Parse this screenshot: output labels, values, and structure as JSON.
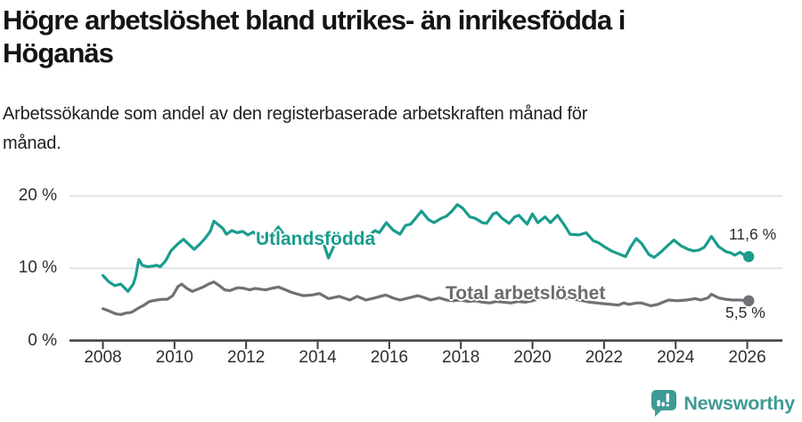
{
  "header": {
    "title_lines": [
      "Högre arbetslöshet bland utrikes- än inrikesfödda i",
      "Höganäs"
    ],
    "subtitle_lines": [
      "Arbetssökande som andel av den registerbaserade arbetskraften månad för",
      "månad."
    ]
  },
  "logo": {
    "text": "Newsworthy",
    "color": "#3f9a95"
  },
  "chart_data": {
    "type": "line",
    "title": "Högre arbetslöshet bland utrikes- än inrikesfödda i Höganäs",
    "subtitle": "Arbetssökande som andel av den registerbaserade arbetskraften månad för månad.",
    "grid": "horizontal",
    "legend_position": "inline-labels",
    "x_axis": {
      "range": [
        2008,
        2026.5
      ],
      "tick_years": [
        2008,
        2010,
        2012,
        2014,
        2016,
        2018,
        2020,
        2022,
        2024,
        2026
      ],
      "tick_labels": [
        "2008",
        "2010",
        "2012",
        "2014",
        "2016",
        "2018",
        "2020",
        "2022",
        "2024",
        "2026"
      ]
    },
    "y_axis": {
      "unit": "%",
      "range": [
        0,
        22
      ],
      "tick_values": [
        0,
        10,
        20
      ],
      "tick_labels": [
        "0 %",
        "10 %",
        "20 %"
      ]
    },
    "series": [
      {
        "name": "Utlandsfödda",
        "color": "#1a9c8e",
        "end_label": "11,6 %",
        "end_value": 11.6,
        "points": [
          [
            2008.0,
            9.0
          ],
          [
            2008.17,
            8.1
          ],
          [
            2008.33,
            7.6
          ],
          [
            2008.5,
            7.8
          ],
          [
            2008.58,
            7.4
          ],
          [
            2008.7,
            6.8
          ],
          [
            2008.85,
            7.8
          ],
          [
            2008.92,
            9.0
          ],
          [
            2009.0,
            11.2
          ],
          [
            2009.1,
            10.4
          ],
          [
            2009.25,
            10.2
          ],
          [
            2009.4,
            10.3
          ],
          [
            2009.5,
            10.4
          ],
          [
            2009.6,
            10.2
          ],
          [
            2009.75,
            11.0
          ],
          [
            2009.9,
            12.4
          ],
          [
            2010.1,
            13.4
          ],
          [
            2010.25,
            14.0
          ],
          [
            2010.4,
            13.3
          ],
          [
            2010.55,
            12.6
          ],
          [
            2010.7,
            13.3
          ],
          [
            2010.85,
            14.1
          ],
          [
            2011.0,
            15.1
          ],
          [
            2011.1,
            16.5
          ],
          [
            2011.25,
            15.9
          ],
          [
            2011.35,
            15.5
          ],
          [
            2011.45,
            14.7
          ],
          [
            2011.6,
            15.2
          ],
          [
            2011.75,
            14.9
          ],
          [
            2011.9,
            15.1
          ],
          [
            2012.05,
            14.6
          ],
          [
            2012.2,
            15.0
          ],
          [
            2012.35,
            14.4
          ],
          [
            2012.5,
            14.3
          ],
          [
            2012.65,
            14.2
          ],
          [
            2012.8,
            15.0
          ],
          [
            2012.9,
            15.7
          ],
          [
            2013.05,
            14.7
          ],
          [
            2013.2,
            14.3
          ],
          [
            2013.4,
            14.6
          ],
          [
            2013.55,
            14.3
          ],
          [
            2013.7,
            14.1
          ],
          [
            2013.85,
            14.4
          ],
          [
            2014.0,
            14.1
          ],
          [
            2014.15,
            13.7
          ],
          [
            2014.3,
            11.4
          ],
          [
            2014.5,
            13.6
          ],
          [
            2014.65,
            14.0
          ],
          [
            2014.85,
            14.3
          ],
          [
            2015.05,
            13.9
          ],
          [
            2015.25,
            14.2
          ],
          [
            2015.45,
            14.6
          ],
          [
            2015.6,
            15.2
          ],
          [
            2015.72,
            14.9
          ],
          [
            2015.92,
            16.3
          ],
          [
            2016.1,
            15.3
          ],
          [
            2016.3,
            14.7
          ],
          [
            2016.45,
            15.9
          ],
          [
            2016.6,
            16.1
          ],
          [
            2016.75,
            17.0
          ],
          [
            2016.9,
            17.9
          ],
          [
            2017.1,
            16.7
          ],
          [
            2017.25,
            16.3
          ],
          [
            2017.45,
            16.9
          ],
          [
            2017.6,
            17.2
          ],
          [
            2017.75,
            17.9
          ],
          [
            2017.9,
            18.8
          ],
          [
            2018.05,
            18.3
          ],
          [
            2018.25,
            17.1
          ],
          [
            2018.4,
            16.9
          ],
          [
            2018.6,
            16.3
          ],
          [
            2018.72,
            16.2
          ],
          [
            2018.9,
            17.5
          ],
          [
            2019.0,
            17.7
          ],
          [
            2019.15,
            16.9
          ],
          [
            2019.35,
            16.2
          ],
          [
            2019.5,
            17.1
          ],
          [
            2019.62,
            17.3
          ],
          [
            2019.85,
            16.1
          ],
          [
            2020.0,
            17.5
          ],
          [
            2020.15,
            16.3
          ],
          [
            2020.35,
            17.1
          ],
          [
            2020.5,
            16.3
          ],
          [
            2020.7,
            17.3
          ],
          [
            2020.9,
            15.9
          ],
          [
            2021.05,
            14.7
          ],
          [
            2021.3,
            14.6
          ],
          [
            2021.5,
            14.9
          ],
          [
            2021.7,
            13.8
          ],
          [
            2021.85,
            13.5
          ],
          [
            2022.0,
            13.0
          ],
          [
            2022.2,
            12.4
          ],
          [
            2022.35,
            12.1
          ],
          [
            2022.5,
            11.8
          ],
          [
            2022.6,
            11.6
          ],
          [
            2022.75,
            13.0
          ],
          [
            2022.9,
            14.1
          ],
          [
            2023.05,
            13.4
          ],
          [
            2023.25,
            11.9
          ],
          [
            2023.4,
            11.5
          ],
          [
            2023.6,
            12.3
          ],
          [
            2023.75,
            13.0
          ],
          [
            2023.95,
            13.9
          ],
          [
            2024.15,
            13.1
          ],
          [
            2024.35,
            12.6
          ],
          [
            2024.5,
            12.4
          ],
          [
            2024.65,
            12.5
          ],
          [
            2024.8,
            12.9
          ],
          [
            2025.0,
            14.4
          ],
          [
            2025.2,
            13.0
          ],
          [
            2025.4,
            12.3
          ],
          [
            2025.55,
            12.1
          ],
          [
            2025.65,
            11.8
          ],
          [
            2025.8,
            12.2
          ],
          [
            2025.95,
            11.7
          ],
          [
            2026.04,
            11.6
          ]
        ]
      },
      {
        "name": "Total arbetslöshet",
        "color": "#707075",
        "end_label": "5,5 %",
        "end_value": 5.5,
        "points": [
          [
            2008.0,
            4.4
          ],
          [
            2008.17,
            4.1
          ],
          [
            2008.35,
            3.7
          ],
          [
            2008.5,
            3.6
          ],
          [
            2008.65,
            3.8
          ],
          [
            2008.8,
            3.9
          ],
          [
            2009.0,
            4.5
          ],
          [
            2009.15,
            4.9
          ],
          [
            2009.3,
            5.4
          ],
          [
            2009.5,
            5.6
          ],
          [
            2009.65,
            5.7
          ],
          [
            2009.8,
            5.7
          ],
          [
            2009.95,
            6.2
          ],
          [
            2010.1,
            7.5
          ],
          [
            2010.2,
            7.8
          ],
          [
            2010.35,
            7.2
          ],
          [
            2010.5,
            6.8
          ],
          [
            2010.65,
            7.1
          ],
          [
            2010.8,
            7.4
          ],
          [
            2010.95,
            7.8
          ],
          [
            2011.1,
            8.1
          ],
          [
            2011.25,
            7.6
          ],
          [
            2011.4,
            7.0
          ],
          [
            2011.55,
            6.9
          ],
          [
            2011.7,
            7.2
          ],
          [
            2011.8,
            7.3
          ],
          [
            2011.95,
            7.2
          ],
          [
            2012.1,
            7.0
          ],
          [
            2012.25,
            7.2
          ],
          [
            2012.4,
            7.1
          ],
          [
            2012.55,
            7.0
          ],
          [
            2012.7,
            7.2
          ],
          [
            2012.9,
            7.4
          ],
          [
            2013.05,
            7.1
          ],
          [
            2013.25,
            6.7
          ],
          [
            2013.45,
            6.4
          ],
          [
            2013.6,
            6.2
          ],
          [
            2013.85,
            6.3
          ],
          [
            2014.05,
            6.5
          ],
          [
            2014.3,
            5.8
          ],
          [
            2014.6,
            6.1
          ],
          [
            2014.9,
            5.6
          ],
          [
            2015.1,
            6.1
          ],
          [
            2015.35,
            5.6
          ],
          [
            2015.6,
            5.9
          ],
          [
            2015.9,
            6.3
          ],
          [
            2016.1,
            5.9
          ],
          [
            2016.3,
            5.6
          ],
          [
            2016.55,
            5.9
          ],
          [
            2016.8,
            6.2
          ],
          [
            2017.0,
            5.9
          ],
          [
            2017.15,
            5.6
          ],
          [
            2017.4,
            5.9
          ],
          [
            2017.6,
            5.6
          ],
          [
            2017.8,
            5.5
          ],
          [
            2018.0,
            5.6
          ],
          [
            2018.2,
            5.4
          ],
          [
            2018.4,
            5.5
          ],
          [
            2018.6,
            5.3
          ],
          [
            2018.8,
            5.2
          ],
          [
            2019.0,
            5.4
          ],
          [
            2019.2,
            5.3
          ],
          [
            2019.4,
            5.2
          ],
          [
            2019.6,
            5.4
          ],
          [
            2019.8,
            5.3
          ],
          [
            2020.0,
            5.5
          ],
          [
            2020.2,
            5.8
          ],
          [
            2020.4,
            6.0
          ],
          [
            2020.6,
            5.9
          ],
          [
            2020.8,
            5.8
          ],
          [
            2021.0,
            5.9
          ],
          [
            2021.2,
            5.7
          ],
          [
            2021.4,
            5.5
          ],
          [
            2021.6,
            5.3
          ],
          [
            2021.8,
            5.2
          ],
          [
            2022.0,
            5.1
          ],
          [
            2022.2,
            5.0
          ],
          [
            2022.4,
            4.9
          ],
          [
            2022.55,
            5.2
          ],
          [
            2022.7,
            5.0
          ],
          [
            2022.9,
            5.2
          ],
          [
            2023.05,
            5.2
          ],
          [
            2023.3,
            4.8
          ],
          [
            2023.5,
            5.0
          ],
          [
            2023.8,
            5.6
          ],
          [
            2024.05,
            5.5
          ],
          [
            2024.3,
            5.6
          ],
          [
            2024.55,
            5.8
          ],
          [
            2024.7,
            5.6
          ],
          [
            2024.9,
            5.9
          ],
          [
            2025.0,
            6.4
          ],
          [
            2025.2,
            5.9
          ],
          [
            2025.4,
            5.7
          ],
          [
            2025.6,
            5.6
          ],
          [
            2025.8,
            5.6
          ],
          [
            2026.04,
            5.5
          ]
        ]
      }
    ]
  }
}
